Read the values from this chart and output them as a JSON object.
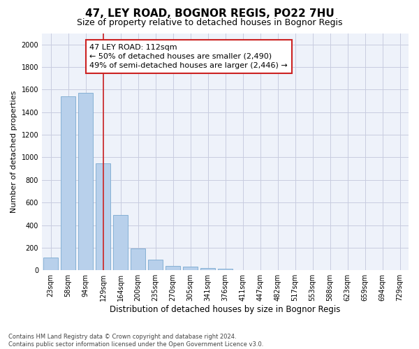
{
  "title": "47, LEY ROAD, BOGNOR REGIS, PO22 7HU",
  "subtitle": "Size of property relative to detached houses in Bognor Regis",
  "xlabel": "Distribution of detached houses by size in Bognor Regis",
  "ylabel": "Number of detached properties",
  "categories": [
    "23sqm",
    "58sqm",
    "94sqm",
    "129sqm",
    "164sqm",
    "200sqm",
    "235sqm",
    "270sqm",
    "305sqm",
    "341sqm",
    "376sqm",
    "411sqm",
    "447sqm",
    "482sqm",
    "517sqm",
    "553sqm",
    "588sqm",
    "623sqm",
    "659sqm",
    "694sqm",
    "729sqm"
  ],
  "values": [
    110,
    1540,
    1570,
    950,
    490,
    190,
    95,
    40,
    30,
    20,
    15,
    0,
    0,
    0,
    0,
    0,
    0,
    0,
    0,
    0,
    0
  ],
  "bar_color": "#b8d0eb",
  "bar_edge_color": "#7aaad0",
  "vline_x": 3.0,
  "vline_color": "#cc2222",
  "annotation_text": "47 LEY ROAD: 112sqm\n← 50% of detached houses are smaller (2,490)\n49% of semi-detached houses are larger (2,446) →",
  "annotation_box_color": "#cc2222",
  "annotation_fill": "white",
  "ylim": [
    0,
    2100
  ],
  "yticks": [
    0,
    200,
    400,
    600,
    800,
    1000,
    1200,
    1400,
    1600,
    1800,
    2000
  ],
  "grid_color": "#c8cce0",
  "bg_color": "#eef2fa",
  "footer": "Contains HM Land Registry data © Crown copyright and database right 2024.\nContains public sector information licensed under the Open Government Licence v3.0.",
  "title_fontsize": 11,
  "subtitle_fontsize": 9,
  "xlabel_fontsize": 8.5,
  "ylabel_fontsize": 8,
  "tick_fontsize": 7,
  "annotation_fontsize": 8,
  "footer_fontsize": 6
}
